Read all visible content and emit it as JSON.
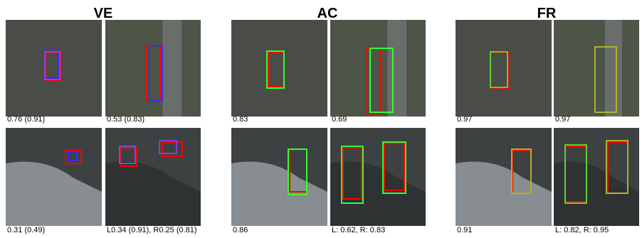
{
  "panels": [
    {
      "title": "VE",
      "captions": [
        "0.76 (0.91)",
        "0.53 (0.83)",
        "0.31 (0.49)",
        "L0.34 (0.91), R0.25 (0.81)"
      ]
    },
    {
      "title": "AC",
      "captions": [
        "0.83",
        "0.69",
        "0.86",
        "L: 0.62, R: 0.83"
      ]
    },
    {
      "title": "FR",
      "captions": [
        "0.97",
        "0.97",
        "0.91",
        "L: 0.82, R: 0.95"
      ]
    }
  ]
}
